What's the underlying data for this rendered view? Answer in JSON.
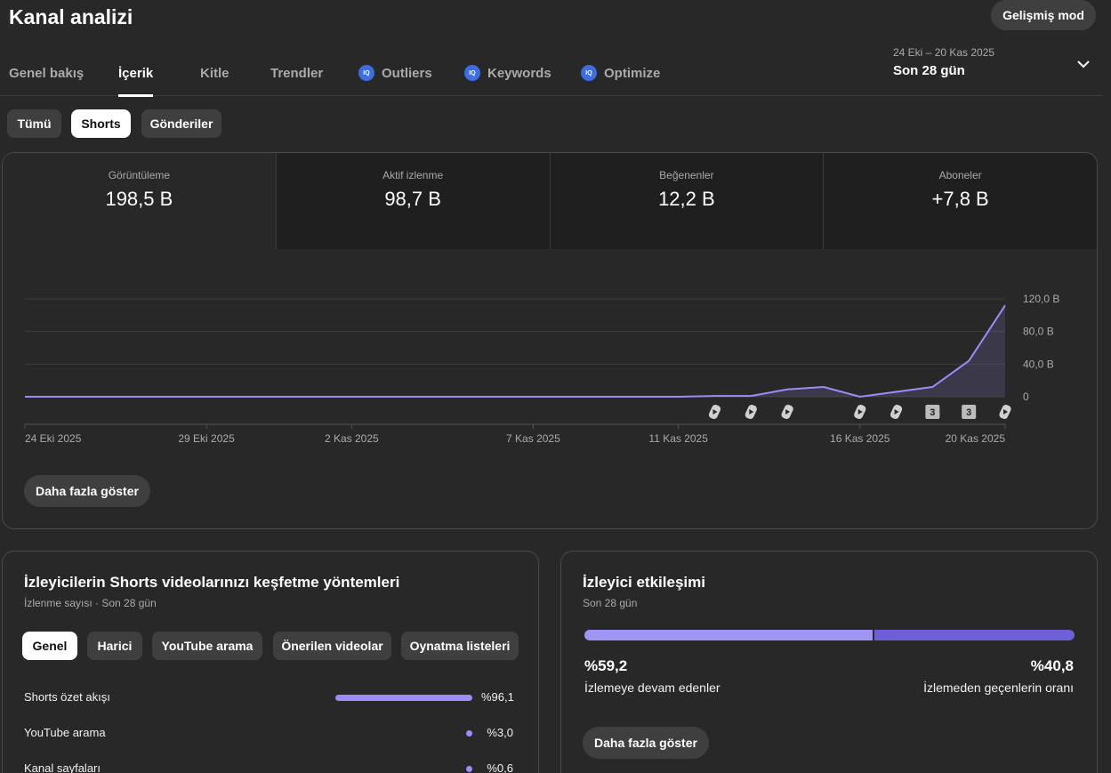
{
  "header": {
    "title": "Kanal analizi",
    "advanced_mode": "Gelişmiş mod"
  },
  "tabs": [
    {
      "label": "Genel bakış",
      "iq": false
    },
    {
      "label": "İçerik",
      "iq": false,
      "active": true
    },
    {
      "label": "Kitle",
      "iq": false
    },
    {
      "label": "Trendler",
      "iq": false
    },
    {
      "label": "Outliers",
      "iq": true
    },
    {
      "label": "Keywords",
      "iq": true
    },
    {
      "label": "Optimize",
      "iq": true
    }
  ],
  "iq_badge": "IQ",
  "date_range": {
    "range": "24 Eki – 20 Kas 2025",
    "label": "Son 28 gün"
  },
  "filters": [
    {
      "label": "Tümü",
      "selected": false
    },
    {
      "label": "Shorts",
      "selected": true
    },
    {
      "label": "Gönderiler",
      "selected": false
    }
  ],
  "metrics": [
    {
      "label": "Görüntüleme",
      "value": "198,5 B"
    },
    {
      "label": "Aktif izlenme",
      "value": "98,7 B"
    },
    {
      "label": "Beğenenler",
      "value": "12,2 B"
    },
    {
      "label": "Aboneler",
      "value": "+7,8 B"
    }
  ],
  "chart_data": {
    "type": "area",
    "y_ticks": [
      "120,0 B",
      "80,0 B",
      "40,0 B",
      "0"
    ],
    "ylim": [
      0,
      120
    ],
    "x_tick_labels": [
      "24 Eki 2025",
      "29 Eki 2025",
      "2 Kas 2025",
      "7 Kas 2025",
      "11 Kas 2025",
      "16 Kas 2025",
      "20 Kas 2025"
    ],
    "x_tick_days": [
      0,
      5,
      9,
      14,
      18,
      23,
      27
    ],
    "series": [
      {
        "values": [
          0,
          0,
          0,
          0,
          0,
          0,
          0,
          0,
          0,
          0,
          0,
          0,
          0,
          0,
          0,
          0,
          0,
          0,
          0,
          1,
          1,
          9,
          12,
          0,
          6,
          12,
          44,
          112
        ]
      }
    ],
    "markers": [
      {
        "day": 19,
        "kind": "shorts"
      },
      {
        "day": 20,
        "kind": "shorts"
      },
      {
        "day": 21,
        "kind": "shorts"
      },
      {
        "day": 23,
        "kind": "shorts"
      },
      {
        "day": 24,
        "kind": "shorts"
      },
      {
        "day": 25,
        "kind": "count",
        "label": "3"
      },
      {
        "day": 26,
        "kind": "count",
        "label": "3"
      },
      {
        "day": 27,
        "kind": "shorts"
      }
    ],
    "color": "#9b8cf7"
  },
  "show_more": "Daha fazla göster",
  "discovery": {
    "title": "İzleyicilerin Shorts videolarınızı keşfetme yöntemleri",
    "subtitle": "İzlenme sayısı · Son 28 gün",
    "tabs": [
      "Genel",
      "Harici",
      "YouTube arama",
      "Önerilen videolar",
      "Oynatma listeleri"
    ],
    "rows": [
      {
        "name": "Shorts özet akışı",
        "pct": "%96,1",
        "share": 96.1
      },
      {
        "name": "YouTube arama",
        "pct": "%3,0",
        "share": 3.0
      },
      {
        "name": "Kanal sayfaları",
        "pct": "%0,6",
        "share": 0.6
      }
    ]
  },
  "engagement": {
    "title": "İzleyici etkileşimi",
    "subtitle": "Son 28 gün",
    "stayed_pct": "%59,2",
    "stayed_label": "İzlemeye devam edenler",
    "swiped_pct": "%40,8",
    "swiped_label": "İzlemeden geçenlerin oranı"
  }
}
